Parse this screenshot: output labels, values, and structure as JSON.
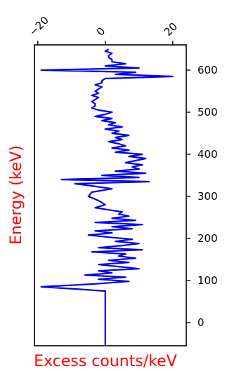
{
  "colors": {
    "series": "#0000ee",
    "axis_label": "#ff0000",
    "axis": "#000000",
    "background": "#ffffff"
  },
  "chart_data": {
    "type": "line",
    "orientation": "value on horizontal axis, energy on vertical axis",
    "xlabel": "Excess counts/keV",
    "ylabel": "Energy (keV)",
    "x_ticks": [
      -20,
      0,
      20
    ],
    "x_tick_labels": [
      "−20",
      "0",
      "20"
    ],
    "x_ticks_position": "top",
    "x_tick_label_rotation": 45,
    "y_ticks": [
      0,
      100,
      200,
      300,
      400,
      500,
      600
    ],
    "y_tick_labels": [
      "0",
      "100",
      "200",
      "300",
      "400",
      "500",
      "600"
    ],
    "y_ticks_position": "right",
    "xlim": [
      -21,
      24
    ],
    "ylim": [
      -55,
      660
    ],
    "grid": false,
    "legend": "none",
    "series": [
      {
        "energy": [
          -55,
          75,
          80,
          85,
          92,
          98,
          103,
          108,
          113,
          118,
          123,
          128,
          133,
          138,
          143,
          148,
          153,
          158,
          163,
          168,
          173,
          178,
          183,
          188,
          193,
          198,
          203,
          208,
          213,
          218,
          223,
          228,
          233,
          238,
          243,
          248,
          253,
          258,
          263,
          268,
          273,
          280,
          290,
          300,
          310,
          318,
          325,
          330,
          335,
          340,
          345,
          350,
          355,
          360,
          365,
          370,
          375,
          380,
          385,
          390,
          395,
          400,
          405,
          410,
          415,
          420,
          425,
          430,
          435,
          440,
          445,
          450,
          455,
          460,
          465,
          470,
          475,
          480,
          485,
          490,
          495,
          500,
          505,
          510,
          515,
          520,
          525,
          530,
          535,
          540,
          545,
          550,
          555,
          560,
          565,
          570,
          575,
          580,
          585,
          590,
          595,
          600,
          605,
          610,
          615,
          620,
          625,
          630,
          635,
          640,
          645,
          650
        ],
        "counts": [
          0,
          0,
          -9,
          -19,
          -3,
          7,
          -2,
          6,
          -6,
          2,
          -2,
          10,
          4,
          -2,
          7,
          1,
          9,
          4,
          6,
          -4,
          11,
          -2,
          5,
          10,
          3,
          8,
          1,
          -5,
          2,
          -3,
          8,
          2,
          11,
          -3,
          9,
          2,
          7,
          4,
          5,
          1,
          -3,
          0,
          -2,
          -5,
          -4,
          2,
          -4,
          -9,
          13,
          -13,
          10,
          -1,
          12,
          3,
          10,
          8,
          11,
          6,
          9,
          12,
          7,
          11,
          3,
          7,
          2,
          6,
          4,
          1,
          5,
          3,
          7,
          2,
          4,
          0,
          5,
          1,
          3,
          -1,
          2,
          -3,
          0,
          2,
          -2,
          -4,
          -3,
          -3,
          -4,
          -3,
          -2,
          -4,
          -2,
          -3,
          -2,
          -1,
          -3,
          -1,
          -1,
          0,
          20,
          3,
          9,
          -19,
          10,
          0,
          6,
          2,
          2,
          1,
          1,
          2,
          0,
          1
        ]
      }
    ]
  }
}
